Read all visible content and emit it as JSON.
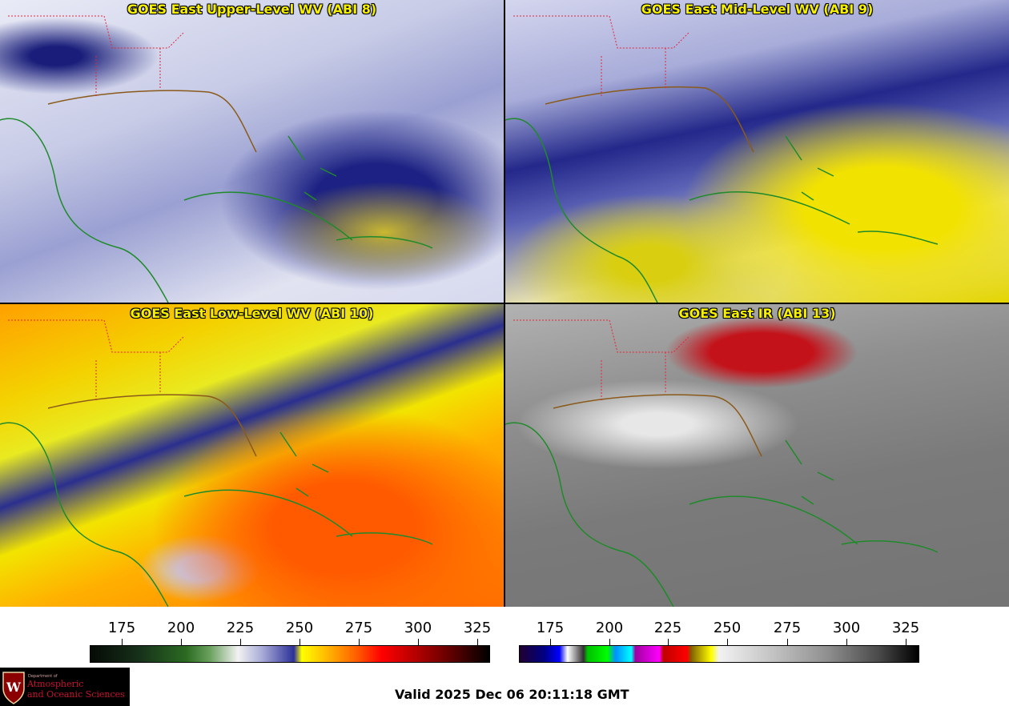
{
  "panels": [
    {
      "title": "GOES East Upper-Level WV (ABI 8)"
    },
    {
      "title": "GOES East Mid-Level WV (ABI 9)"
    },
    {
      "title": "GOES East Low-Level WV (ABI 10)"
    },
    {
      "title": "GOES East IR (ABI 13)"
    }
  ],
  "colorbars": {
    "wv": {
      "ticks": [
        "175",
        "200",
        "225",
        "250",
        "275",
        "300",
        "325"
      ]
    },
    "ir": {
      "ticks": [
        "175",
        "200",
        "225",
        "250",
        "275",
        "300",
        "325"
      ]
    }
  },
  "logo": {
    "small": "Department of",
    "line1": "Atmospheric",
    "line2": "and Oceanic Sciences"
  },
  "footer": {
    "valid": "Valid 2025 Dec 06 20:11:18 GMT"
  },
  "colors": {
    "title": "#f6f000",
    "coastline": "#1f8a2a",
    "state_lines": "#e0283c",
    "logo_red": "#c8102e"
  }
}
